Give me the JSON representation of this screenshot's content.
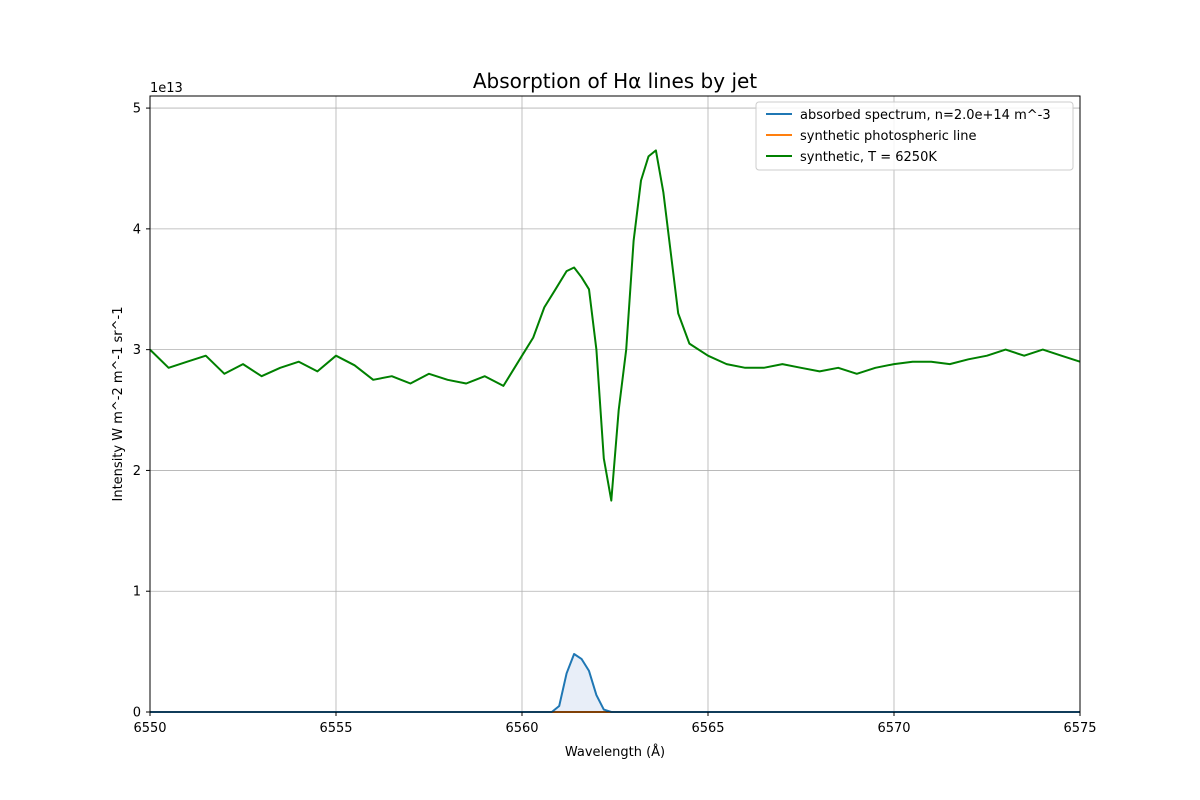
{
  "chart_data": {
    "type": "line",
    "title": "Absorption of Hα lines by jet",
    "xlabel": "Wavelength (Å)",
    "ylabel": "Intensity W m^-2 m^-1 sr^-1",
    "y_offset_label": "1e13",
    "xlim": [
      6550,
      6575
    ],
    "ylim": [
      0,
      5.1
    ],
    "y_units_multiplier": 10000000000000.0,
    "x_ticks": [
      "6550",
      "6555",
      "6560",
      "6565",
      "6570",
      "6575"
    ],
    "y_ticks": [
      "0",
      "1",
      "2",
      "3",
      "4",
      "5"
    ],
    "grid": true,
    "legend_position": "upper right",
    "series": [
      {
        "name": "absorbed spectrum, n=2.0e+14 m^-3",
        "color": "#1f77b4",
        "fill": "#e8eef8",
        "x": [
          6550,
          6560.8,
          6561.0,
          6561.2,
          6561.4,
          6561.6,
          6561.8,
          6562.0,
          6562.2,
          6562.4,
          6575
        ],
        "y": [
          0,
          0,
          0.05,
          0.32,
          0.48,
          0.44,
          0.34,
          0.14,
          0.02,
          0,
          0
        ]
      },
      {
        "name": "synthetic photospheric line",
        "color": "#ff7f0e",
        "x": [
          6550,
          6575
        ],
        "y": [
          0,
          0
        ]
      },
      {
        "name": "synthetic, T = 6250K",
        "color": "#008000",
        "x": [
          6550.0,
          6550.5,
          6551.0,
          6551.5,
          6552.0,
          6552.5,
          6553.0,
          6553.5,
          6554.0,
          6554.5,
          6555.0,
          6555.5,
          6556.0,
          6556.5,
          6557.0,
          6557.5,
          6558.0,
          6558.5,
          6559.0,
          6559.5,
          6560.0,
          6560.3,
          6560.6,
          6560.9,
          6561.2,
          6561.4,
          6561.6,
          6561.8,
          6562.0,
          6562.2,
          6562.4,
          6562.6,
          6562.8,
          6563.0,
          6563.2,
          6563.4,
          6563.6,
          6563.8,
          6564.0,
          6564.2,
          6564.5,
          6565.0,
          6565.5,
          6566.0,
          6566.5,
          6567.0,
          6567.5,
          6568.0,
          6568.5,
          6569.0,
          6569.5,
          6570.0,
          6570.5,
          6571.0,
          6571.5,
          6572.0,
          6572.5,
          6573.0,
          6573.5,
          6574.0,
          6574.5,
          6575.0
        ],
        "y": [
          3.0,
          2.85,
          2.9,
          2.95,
          2.8,
          2.88,
          2.78,
          2.85,
          2.9,
          2.82,
          2.95,
          2.87,
          2.75,
          2.78,
          2.72,
          2.8,
          2.75,
          2.72,
          2.78,
          2.7,
          2.95,
          3.1,
          3.35,
          3.5,
          3.65,
          3.68,
          3.6,
          3.5,
          3.0,
          2.1,
          1.75,
          2.5,
          3.0,
          3.9,
          4.4,
          4.6,
          4.65,
          4.3,
          3.8,
          3.3,
          3.05,
          2.95,
          2.88,
          2.85,
          2.85,
          2.88,
          2.85,
          2.82,
          2.85,
          2.8,
          2.85,
          2.88,
          2.9,
          2.9,
          2.88,
          2.92,
          2.95,
          3.0,
          2.95,
          3.0,
          2.95,
          2.9
        ]
      }
    ]
  }
}
